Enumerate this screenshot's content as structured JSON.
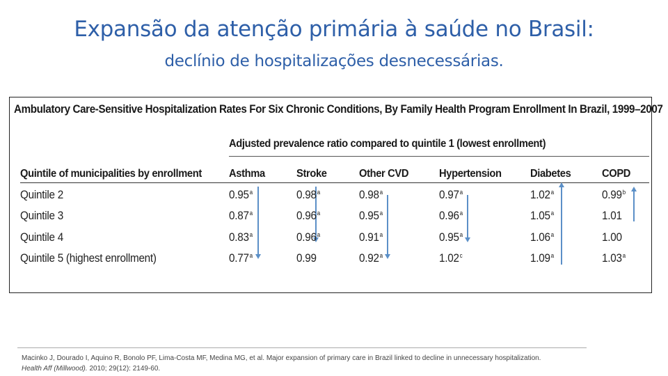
{
  "slide": {
    "title": "Expansão da atenção primária à saúde no Brasil:",
    "subtitle": "declínio de hospitalizações desnecessárias."
  },
  "table": {
    "caption": "Ambulatory Care-Sensitive Hospitalization Rates For Six Chronic Conditions, By Family Health Program Enrollment In Brazil, 1999–2007",
    "group_header": "Adjusted prevalence ratio compared to quintile 1 (lowest enrollment)",
    "row_header": "Quintile of municipalities by enrollment",
    "columns": [
      "Asthma",
      "Stroke",
      "Other CVD",
      "Hypertension",
      "Diabetes",
      "COPD"
    ],
    "rows": [
      {
        "label": "Quintile 2",
        "cells": [
          {
            "v": "0.95",
            "s": "a"
          },
          {
            "v": "0.98",
            "s": "a"
          },
          {
            "v": "0.98",
            "s": "a"
          },
          {
            "v": "0.97",
            "s": "a"
          },
          {
            "v": "1.02",
            "s": "a"
          },
          {
            "v": "0.99",
            "s": "b"
          }
        ]
      },
      {
        "label": "Quintile 3",
        "cells": [
          {
            "v": "0.87",
            "s": "a"
          },
          {
            "v": "0.96",
            "s": "a"
          },
          {
            "v": "0.95",
            "s": "a"
          },
          {
            "v": "0.96",
            "s": "a"
          },
          {
            "v": "1.05",
            "s": "a"
          },
          {
            "v": "1.01",
            "s": ""
          }
        ]
      },
      {
        "label": "Quintile 4",
        "cells": [
          {
            "v": "0.83",
            "s": "a"
          },
          {
            "v": "0.96",
            "s": "a"
          },
          {
            "v": "0.91",
            "s": "a"
          },
          {
            "v": "0.95",
            "s": "a"
          },
          {
            "v": "1.06",
            "s": "a"
          },
          {
            "v": "1.00",
            "s": ""
          }
        ]
      },
      {
        "label": "Quintile 5 (highest enrollment)",
        "cells": [
          {
            "v": "0.77",
            "s": "a"
          },
          {
            "v": "0.99",
            "s": ""
          },
          {
            "v": "0.92",
            "s": "a"
          },
          {
            "v": "1.02",
            "s": "c"
          },
          {
            "v": "1.09",
            "s": "a"
          },
          {
            "v": "1.03",
            "s": "a"
          }
        ]
      }
    ],
    "trend_arrows": [
      {
        "column": "Asthma",
        "direction": "down"
      },
      {
        "column": "Stroke",
        "direction": "down"
      },
      {
        "column": "Other CVD",
        "direction": "down"
      },
      {
        "column": "Hypertension",
        "direction": "down"
      },
      {
        "column": "Diabetes",
        "direction": "up"
      },
      {
        "column": "COPD",
        "direction": "up"
      }
    ],
    "arrow_color": "#5b8fc7"
  },
  "citation": {
    "authors": "Macinko J, Dourado I, Aquino R, Bonolo PF, Lima-Costa MF, Medina MG, et al. Major expansion of primary care in Brazil linked to decline in unnecessary hospitalization.",
    "journal": "Health Aff (Millwood).",
    "details": " 2010; 29(12): 2149-60."
  }
}
